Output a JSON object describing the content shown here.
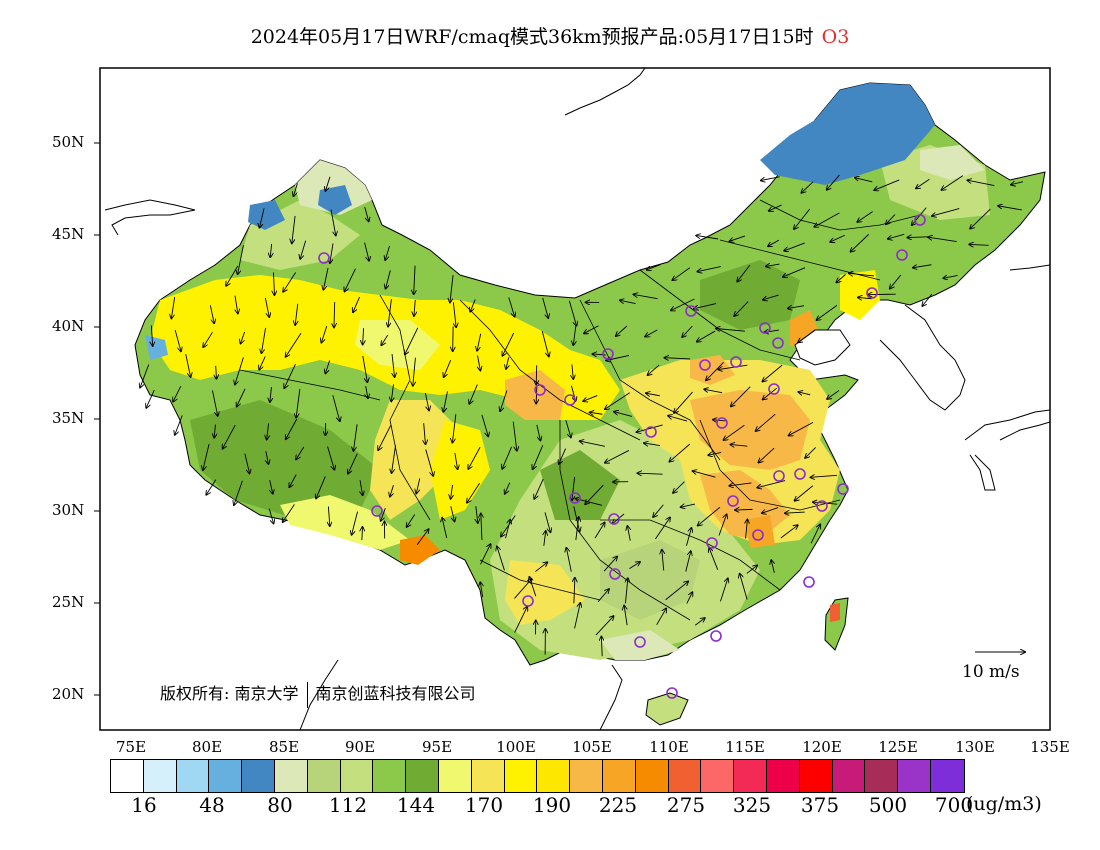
{
  "title": "2024年05月17日WRF/cmaq模式36km预报产品:05月17日15时",
  "pollutant": "O3",
  "lat_labels": [
    "50N",
    "45N",
    "40N",
    "35N",
    "30N",
    "25N",
    "20N"
  ],
  "lon_labels": [
    "75E",
    "80E",
    "85E",
    "90E",
    "95E",
    "100E",
    "105E",
    "110E",
    "115E",
    "120E",
    "125E",
    "130E",
    "135E"
  ],
  "copyright": {
    "prefix": "版权所有:",
    "org1": "南京大学",
    "org2": "南京创蓝科技有限公司"
  },
  "wind_reference": "10 m/s",
  "legend": {
    "colors": [
      "#ffffff",
      "#d6f0fb",
      "#a0d8f4",
      "#66b0e0",
      "#4286c2",
      "#dce8b8",
      "#b8d47a",
      "#c4e07e",
      "#8cc84a",
      "#70ab34",
      "#f0f870",
      "#f4e456",
      "#fff200",
      "#fde600",
      "#f8b848",
      "#f7a524",
      "#f68b00",
      "#f06030",
      "#fc6868",
      "#f42a56",
      "#ee0048",
      "#fc0000",
      "#c81a78",
      "#a82c58",
      "#9a33c8",
      "#7e2ed8"
    ],
    "labels": [
      "16",
      "48",
      "80",
      "112",
      "144",
      "170",
      "190",
      "225",
      "275",
      "325",
      "375",
      "500",
      "700"
    ],
    "unit": "(ug/m3)"
  },
  "colors": {
    "ocean": "#ffffff",
    "outline": "#000000",
    "marker": "#8c2ccc"
  }
}
